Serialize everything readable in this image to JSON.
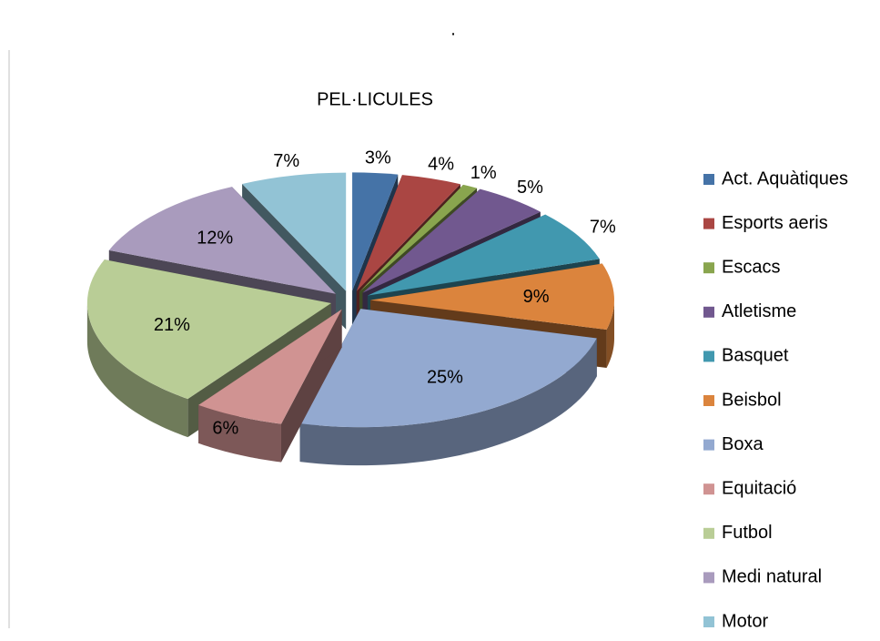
{
  "chart_data": {
    "type": "pie",
    "title": "PEL·LICULES",
    "annotation": ".",
    "categories": [
      "Act. Aquàtiques",
      "Esports aeris",
      "Escacs",
      "Atletisme",
      "Basquet",
      "Beisbol",
      "Boxa",
      "Equitació",
      "Futbol",
      "Medi natural",
      "Motor"
    ],
    "values": [
      3,
      4,
      1,
      5,
      7,
      9,
      25,
      6,
      21,
      12,
      7
    ],
    "value_labels": [
      "3%",
      "4%",
      "1%",
      "5%",
      "7%",
      "9%",
      "25%",
      "6%",
      "21%",
      "12%",
      "7%"
    ],
    "colors": [
      "#4573a7",
      "#aa4643",
      "#89a54e",
      "#71588f",
      "#4198af",
      "#db843d",
      "#93a9d0",
      "#d09392",
      "#b9cd96",
      "#a99bbd",
      "#92c3d5"
    ],
    "legend": "right"
  }
}
